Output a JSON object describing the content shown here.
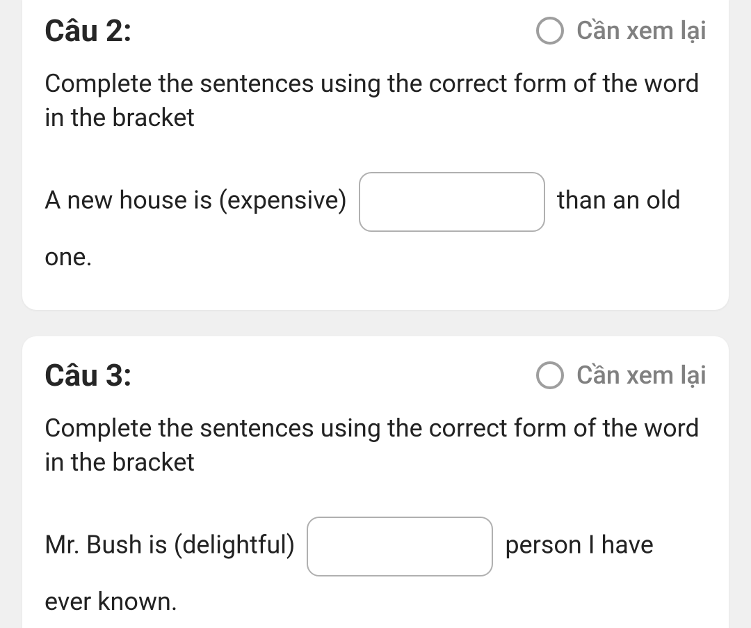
{
  "colors": {
    "page_bg": "#f0f0f0",
    "card_bg": "#ffffff",
    "title_text": "#262626",
    "body_text": "#222222",
    "review_text": "#808080",
    "radio_border": "#9e9e9e",
    "input_border": "#b0b0b0",
    "input_focus": "#1976d2"
  },
  "typography": {
    "title_fontsize": 44,
    "title_weight": 700,
    "review_fontsize": 36,
    "review_weight": 500,
    "instruction_fontsize": 36,
    "sentence_fontsize": 36
  },
  "layout": {
    "card_radius": 20,
    "input_radius": 18,
    "radio_size": 40,
    "radio_border_width": 4,
    "input_width": 268,
    "input_height": 86,
    "card_gap": 38
  },
  "questions": [
    {
      "title": "Câu 2:",
      "review_label": "Cần xem lại",
      "review_checked": false,
      "instruction": "Complete the sentences using the correct form of the word in the bracket",
      "sentence_before": "A new house is (expensive) ",
      "sentence_after": " than an old one.",
      "input_value": ""
    },
    {
      "title": "Câu 3:",
      "review_label": "Cần xem lại",
      "review_checked": false,
      "instruction": "Complete the sentences using the correct form of the word in the bracket",
      "sentence_before": "Mr. Bush is (delightful) ",
      "sentence_after": " person I have ever known.",
      "input_value": ""
    }
  ]
}
